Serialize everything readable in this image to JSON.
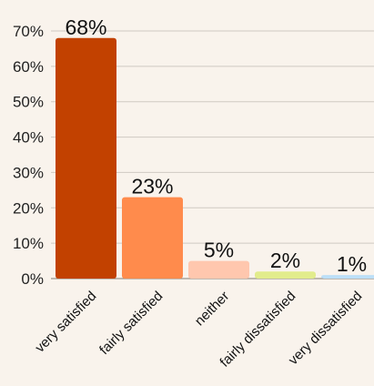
{
  "chart_data": {
    "type": "bar",
    "categories": [
      "very satisfied",
      "fairly satisfied",
      "neither",
      "fairly dissatisfied",
      "very dissatisfied"
    ],
    "values": [
      68,
      23,
      5,
      2,
      1
    ],
    "data_labels": [
      "68%",
      "23%",
      "5%",
      "2%",
      "1%"
    ],
    "colors": [
      "#c24100",
      "#ff8b4c",
      "#ffc7ae",
      "#e2ec8c",
      "#bcdff7"
    ],
    "yticks": [
      0,
      10,
      20,
      30,
      40,
      50,
      60,
      70
    ],
    "ytick_labels": [
      "0%",
      "10%",
      "20%",
      "30%",
      "40%",
      "50%",
      "60%",
      "70%"
    ],
    "ylim": [
      0,
      70
    ],
    "title": "",
    "xlabel": "",
    "ylabel": "",
    "grid": true,
    "legend": "none"
  }
}
